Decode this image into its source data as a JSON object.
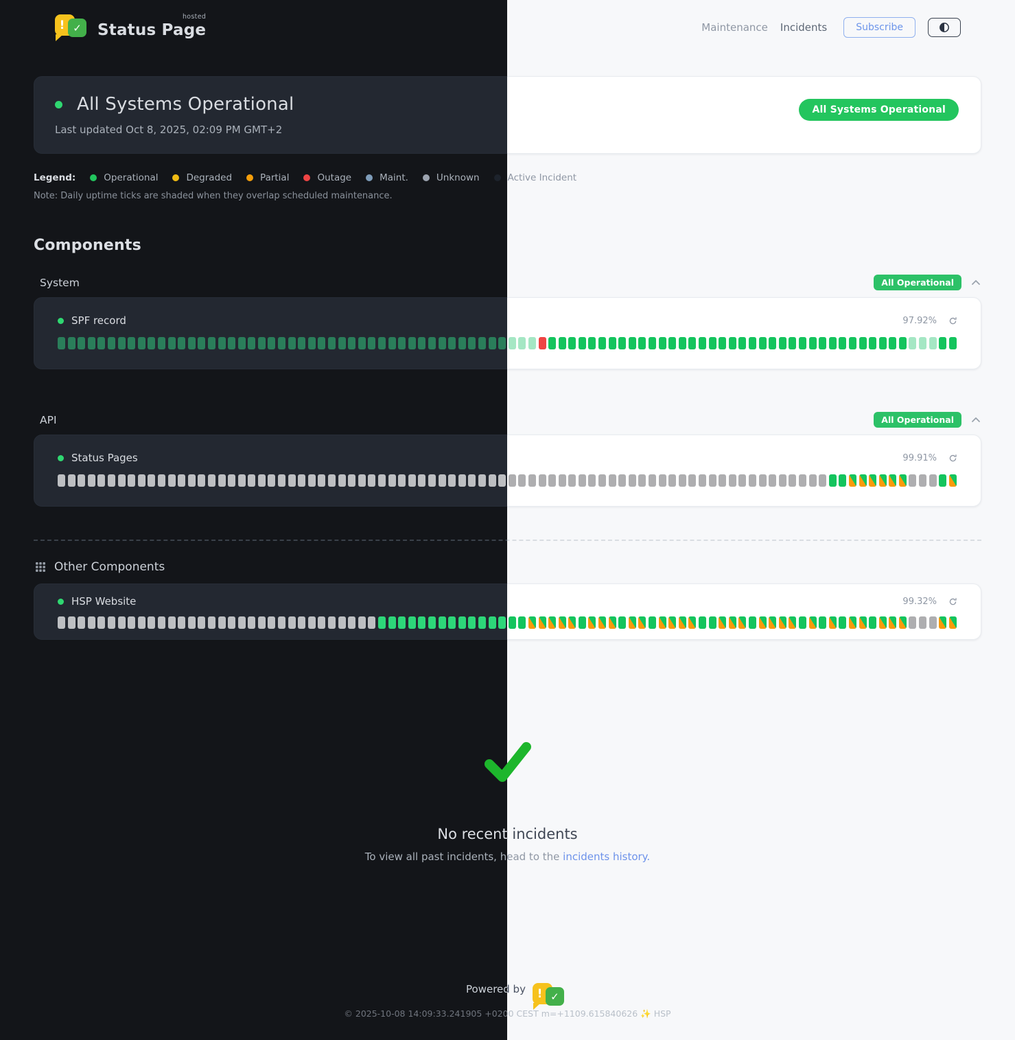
{
  "header": {
    "brand": "Status Page",
    "brand_sub": "hosted",
    "logo_exclaim": "!",
    "logo_check": "✓",
    "nav": [
      {
        "label": "Maintenance"
      },
      {
        "label": "Incidents"
      }
    ],
    "subscribe_label": "Subscribe"
  },
  "banner": {
    "title": "All Systems Operational",
    "last_updated": "Last updated Oct 8, 2025, 02:09 PM GMT+2",
    "badge": "All Systems Operational"
  },
  "legend": {
    "label": "Legend:",
    "items": [
      {
        "label": "Operational",
        "color": "#22c55e"
      },
      {
        "label": "Degraded",
        "color": "#f0bb13"
      },
      {
        "label": "Partial",
        "color": "#f59e0b"
      },
      {
        "label": "Outage",
        "color": "#ef4444"
      },
      {
        "label": "Maint.",
        "color": "#7e9cb9"
      },
      {
        "label": "Unknown",
        "color": "#9ca3af"
      },
      {
        "label": "Active Incident",
        "color": "#1d232c"
      }
    ],
    "note": "Note: Daily uptime ticks are shaded when they overlap scheduled maintenance."
  },
  "components": {
    "heading": "Components",
    "groups": [
      {
        "name": "System",
        "badge": "All Operational",
        "items": [
          {
            "name": "SPF record",
            "uptime": "97.92%",
            "ticks": "ssssssssssssssssssssssssssssssssssssssssssssssssxoooooooooooooooooooooooooooooooooooosssoo"
          }
        ]
      },
      {
        "name": "API",
        "badge": "All Operational",
        "items": [
          {
            "name": "Status Pages",
            "uptime": "99.91%",
            "ticks": "uuuuuuuuuuuuuuuuuuuuuuuuuuuuuuuuuuuuuuuuuuuuuuuuuuuuuuuuuuuuuuuuuuuuuuuuuuuuuoodddddduuuod"
          }
        ]
      }
    ],
    "other": {
      "heading": "Other Components",
      "items": [
        {
          "name": "HSP Website",
          "uptime": "99.32%",
          "ticks": "uuuuuuuuuuuuuuuuuuuuuuuuuuuuuuuuooooooooooooooodddddodddoddoddddoodddoddddodododdoddduuudd"
        }
      ]
    }
  },
  "incidents": {
    "title": "No recent incidents",
    "subtext_prefix": "To view all past incidents, head to the ",
    "link_label": "incidents history."
  },
  "footer": {
    "powered_by": "Powered by",
    "copyright": "© 2025-10-08 14:09:33.241905 +0200 CEST m=+1109.615840626 ✨ HSP"
  }
}
